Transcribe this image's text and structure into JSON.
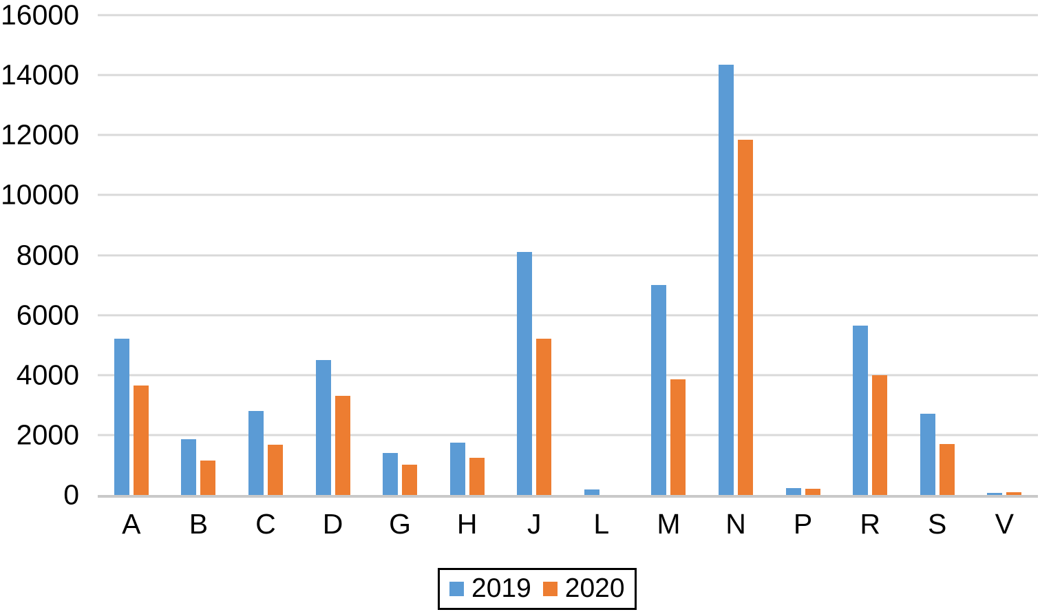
{
  "chart_data": {
    "type": "bar",
    "title": "",
    "xlabel": "",
    "ylabel": "",
    "categories": [
      "A",
      "B",
      "C",
      "D",
      "G",
      "H",
      "J",
      "L",
      "M",
      "N",
      "P",
      "R",
      "S",
      "V"
    ],
    "series": [
      {
        "name": "2019",
        "color": "#5B9BD5",
        "values": [
          5200,
          1850,
          2800,
          4500,
          1400,
          1750,
          8100,
          175,
          7000,
          14350,
          230,
          5650,
          2700,
          80
        ]
      },
      {
        "name": "2020",
        "color": "#ED7D31",
        "values": [
          3650,
          1150,
          1675,
          3300,
          1000,
          1250,
          5200,
          0,
          3850,
          11850,
          215,
          4000,
          1700,
          90
        ]
      }
    ],
    "ylim": [
      0,
      16000
    ],
    "yticks": [
      0,
      2000,
      4000,
      6000,
      8000,
      10000,
      12000,
      14000,
      16000
    ],
    "grid": "horizontal-only",
    "gridline_color": "#D9D9D9",
    "axis_line_color": "#C9C9C9",
    "axis_text_color": "#000000",
    "background": "#FFFFFF",
    "legend_position": "bottom-center",
    "legend_border_color": "#000000"
  }
}
